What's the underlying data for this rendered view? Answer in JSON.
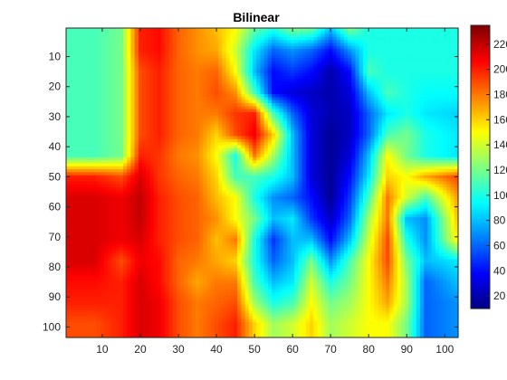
{
  "chart_data": {
    "type": "heatmap",
    "title": "Bilinear",
    "xlabel": "",
    "ylabel": "",
    "xlim": [
      0.5,
      103.5
    ],
    "ylim": [
      103.5,
      0.5
    ],
    "y_reversed": true,
    "grid": false,
    "x_ticks": [
      10,
      20,
      30,
      40,
      50,
      60,
      70,
      80,
      90,
      100
    ],
    "y_ticks": [
      10,
      20,
      30,
      40,
      50,
      60,
      70,
      80,
      90,
      100
    ],
    "colormap": "jet",
    "colorbar": {
      "placement": "right",
      "range": [
        10,
        235
      ],
      "ticks": [
        20,
        40,
        60,
        80,
        100,
        120,
        140,
        160,
        180,
        200,
        220
      ],
      "tick_labels": [
        "20",
        "40",
        "60",
        "80",
        "100",
        "120",
        "140",
        "160",
        "180",
        "200",
        "220"
      ]
    },
    "grid_size": [
      103,
      103
    ],
    "control_grid": {
      "x": [
        1,
        8,
        15,
        20,
        25,
        30,
        35,
        40,
        45,
        50,
        55,
        60,
        65,
        70,
        75,
        80,
        85,
        90,
        95,
        103
      ],
      "y": [
        1,
        8,
        15,
        22,
        29,
        36,
        43,
        50,
        57,
        64,
        71,
        78,
        85,
        92,
        99,
        103
      ],
      "values": [
        [
          110,
          110,
          120,
          200,
          205,
          185,
          175,
          165,
          150,
          115,
          100,
          120,
          115,
          80,
          120,
          100,
          100,
          100,
          100,
          100
        ],
        [
          110,
          110,
          120,
          200,
          205,
          185,
          175,
          170,
          140,
          90,
          60,
          70,
          60,
          40,
          70,
          100,
          100,
          100,
          100,
          100
        ],
        [
          110,
          110,
          120,
          190,
          200,
          185,
          180,
          185,
          150,
          80,
          40,
          50,
          40,
          20,
          40,
          110,
          100,
          100,
          100,
          100
        ],
        [
          110,
          110,
          120,
          190,
          200,
          185,
          180,
          190,
          175,
          110,
          40,
          30,
          25,
          20,
          30,
          80,
          110,
          100,
          95,
          95
        ],
        [
          110,
          110,
          120,
          190,
          200,
          185,
          180,
          180,
          195,
          200,
          110,
          60,
          30,
          20,
          25,
          60,
          90,
          100,
          90,
          85
        ],
        [
          110,
          110,
          120,
          190,
          200,
          185,
          180,
          160,
          190,
          210,
          160,
          80,
          30,
          15,
          25,
          60,
          110,
          120,
          100,
          90
        ],
        [
          110,
          110,
          120,
          200,
          195,
          180,
          175,
          150,
          100,
          180,
          130,
          80,
          30,
          15,
          30,
          80,
          150,
          120,
          100,
          90
        ],
        [
          200,
          200,
          190,
          215,
          195,
          185,
          180,
          160,
          110,
          110,
          100,
          80,
          30,
          15,
          40,
          90,
          160,
          150,
          170,
          190
        ],
        [
          215,
          215,
          210,
          220,
          200,
          190,
          185,
          165,
          150,
          100,
          70,
          60,
          40,
          15,
          50,
          110,
          180,
          140,
          110,
          170
        ],
        [
          215,
          215,
          210,
          220,
          200,
          190,
          185,
          175,
          150,
          120,
          80,
          90,
          50,
          25,
          60,
          130,
          180,
          80,
          70,
          160
        ],
        [
          215,
          215,
          210,
          215,
          200,
          190,
          185,
          165,
          180,
          100,
          50,
          80,
          80,
          40,
          80,
          140,
          190,
          100,
          70,
          150
        ],
        [
          215,
          215,
          190,
          210,
          205,
          185,
          180,
          170,
          160,
          100,
          60,
          80,
          120,
          70,
          110,
          150,
          190,
          120,
          80,
          90
        ],
        [
          205,
          205,
          200,
          215,
          205,
          185,
          170,
          180,
          180,
          110,
          80,
          90,
          140,
          100,
          120,
          150,
          180,
          130,
          60,
          80
        ],
        [
          200,
          200,
          200,
          215,
          210,
          190,
          180,
          185,
          190,
          130,
          100,
          110,
          150,
          120,
          130,
          150,
          170,
          130,
          60,
          70
        ],
        [
          190,
          190,
          200,
          215,
          210,
          190,
          180,
          190,
          200,
          160,
          130,
          140,
          160,
          130,
          140,
          150,
          150,
          120,
          60,
          70
        ],
        [
          190,
          190,
          200,
          215,
          210,
          190,
          180,
          190,
          200,
          160,
          130,
          140,
          160,
          130,
          140,
          150,
          150,
          120,
          60,
          70
        ]
      ]
    }
  }
}
